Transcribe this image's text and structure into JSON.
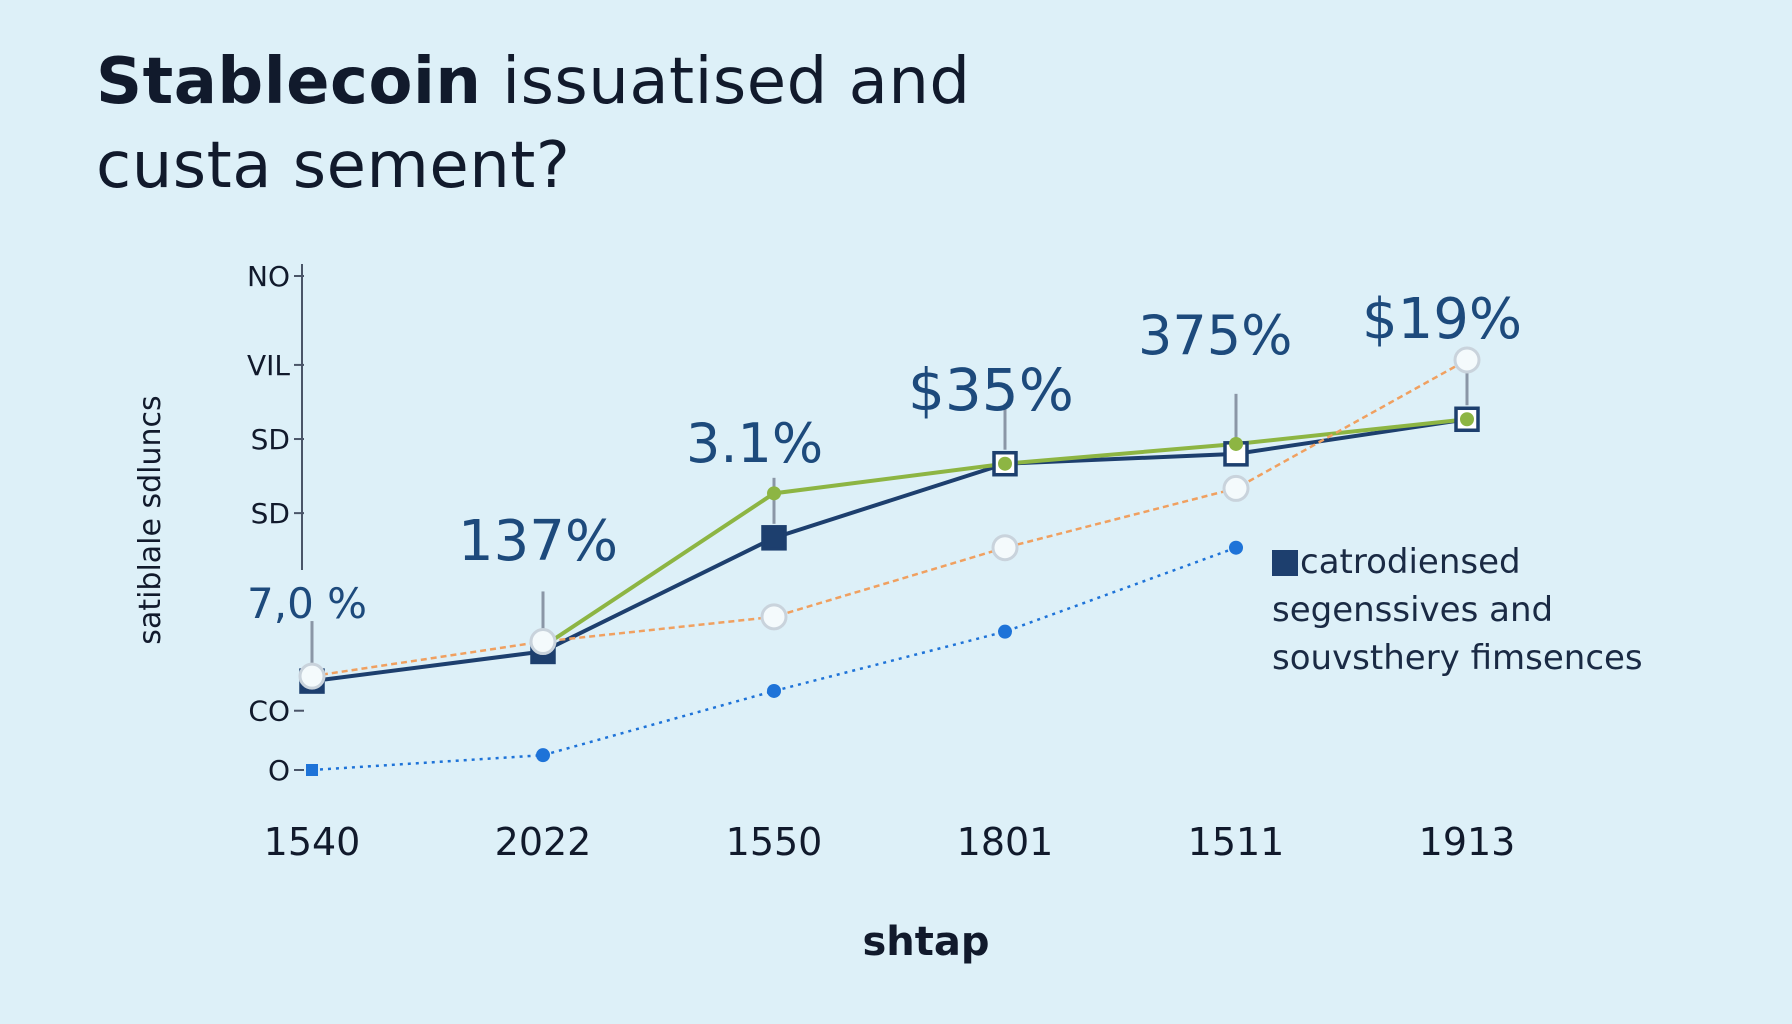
{
  "title": {
    "line1_bold": "Stablecoin",
    "line1_rest": " issuatised and",
    "line2": "custa sement?"
  },
  "colors": {
    "background": "#ddf0f8",
    "navy": "#1d3f6e",
    "green": "#8db543",
    "orange": "#f0a060",
    "blue": "#1e73d8",
    "label_blue": "#1d4a7c"
  },
  "chart_data": {
    "type": "line",
    "title": "Stablecoin issuatised and custa sement?",
    "xlabel": "shtap",
    "ylabel": "satiblale sdluncs",
    "categories": [
      "1540",
      "2022",
      "1550",
      "1801",
      "1511",
      "1913"
    ],
    "y_ticks": [
      "NO",
      "VIL",
      "SD",
      "SD",
      "CO",
      "O"
    ],
    "y_tick_values": [
      100,
      82,
      67,
      52,
      12,
      0
    ],
    "ylim": [
      0,
      100
    ],
    "grid": false,
    "legend_position": "right",
    "data_labels": [
      "7,0 %",
      "137%",
      "3.1%",
      "$35%",
      "375%",
      "$19%"
    ],
    "series": [
      {
        "color": "#1d3f6e",
        "marker": "square",
        "values": [
          18,
          24,
          47,
          62,
          64,
          71
        ]
      },
      {
        "color": "#8db543",
        "marker": "circle",
        "values": [
          null,
          25,
          56,
          62,
          66,
          71
        ]
      },
      {
        "color": "#f0a060",
        "marker": "ring",
        "style": "dashed",
        "values": [
          19,
          26,
          31,
          45,
          57,
          83
        ]
      },
      {
        "color": "#1e73d8",
        "marker": "dot",
        "style": "dotted",
        "values": [
          0,
          3,
          16,
          28,
          45,
          null
        ]
      }
    ]
  },
  "legend": {
    "lines": [
      "catrodiensed",
      "segenssives and",
      "souvsthery fimsences"
    ]
  }
}
